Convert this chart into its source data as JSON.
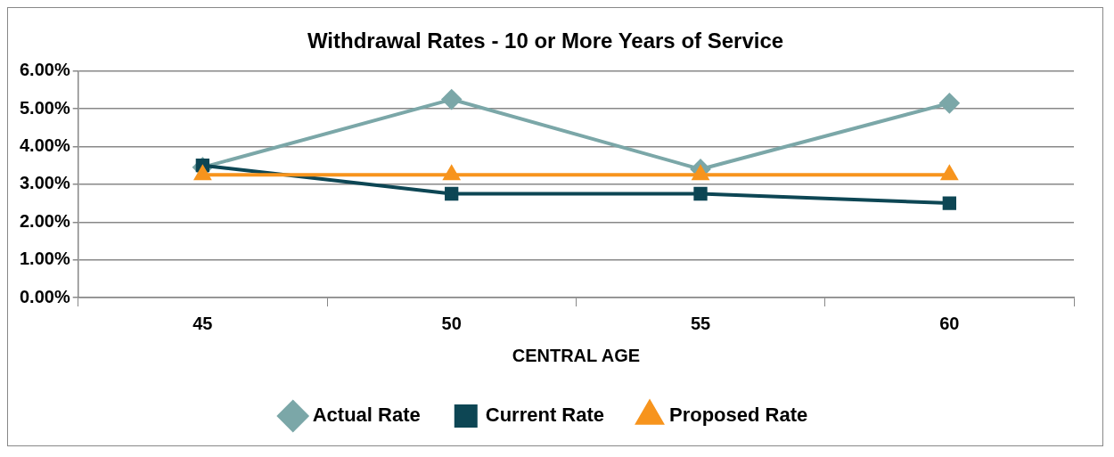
{
  "chart_data": {
    "type": "line",
    "title": "Withdrawal Rates - 10 or More Years of Service",
    "xlabel": "CENTRAL AGE",
    "categories": [
      "45",
      "50",
      "55",
      "60"
    ],
    "series": [
      {
        "name": "Actual Rate",
        "color": "#7ba7a8",
        "marker": "diamond",
        "values": [
          3.45,
          5.25,
          3.4,
          5.15
        ]
      },
      {
        "name": "Current Rate",
        "color": "#0d4654",
        "marker": "square",
        "values": [
          3.5,
          2.75,
          2.75,
          2.5
        ]
      },
      {
        "name": "Proposed Rate",
        "color": "#f7941d",
        "marker": "triangle",
        "values": [
          3.25,
          3.25,
          3.25,
          3.25
        ]
      }
    ],
    "ylim": [
      0,
      6
    ],
    "yticks": [
      {
        "value": 0,
        "label": "0.00%"
      },
      {
        "value": 1,
        "label": "1.00%"
      },
      {
        "value": 2,
        "label": "2.00%"
      },
      {
        "value": 3,
        "label": "3.00%"
      },
      {
        "value": 4,
        "label": "4.00%"
      },
      {
        "value": 5,
        "label": "5.00%"
      },
      {
        "value": 6,
        "label": "6.00%"
      }
    ],
    "grid": "y",
    "legend": "bottom",
    "line_style": "solid"
  }
}
